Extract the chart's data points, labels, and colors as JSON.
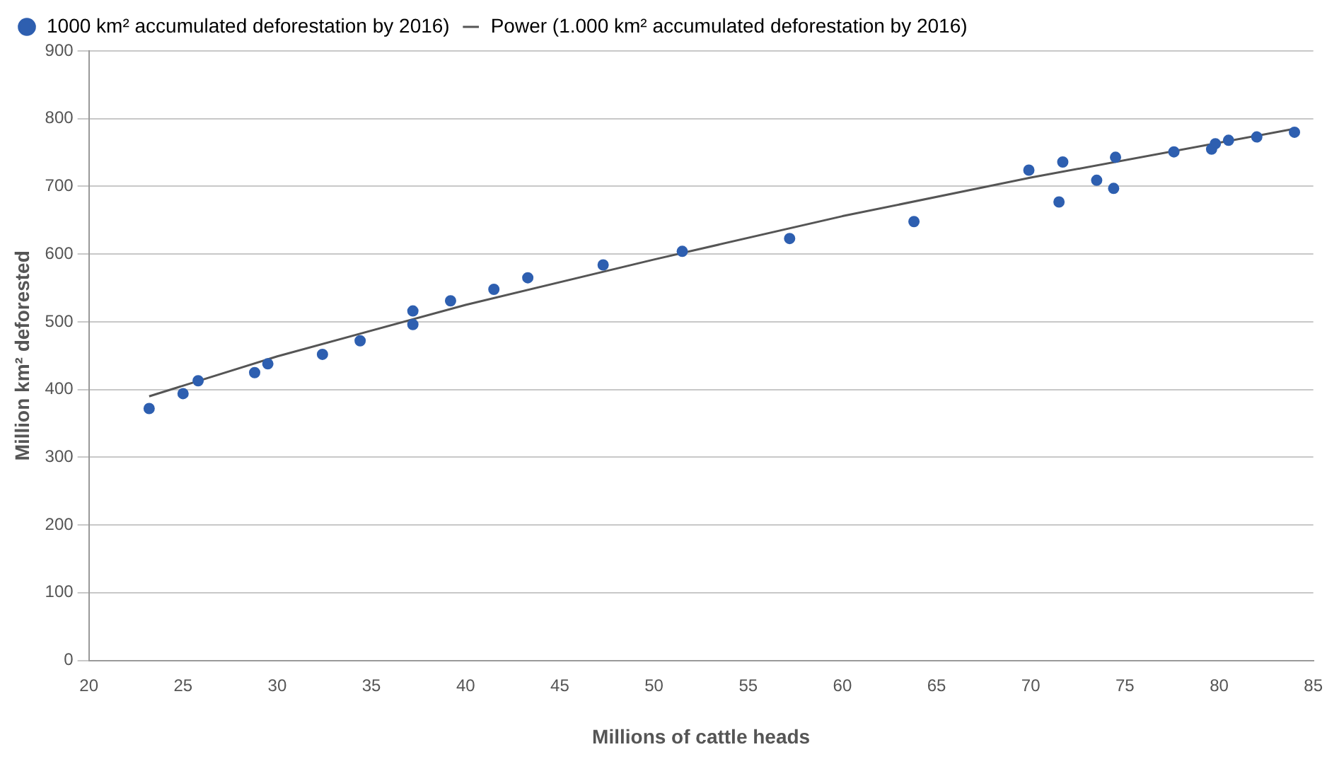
{
  "chart_data": {
    "type": "scatter",
    "xlabel": "Millions of cattle heads",
    "ylabel": "Million km² deforested",
    "xlim": [
      20,
      85
    ],
    "xticks": [
      20,
      25,
      30,
      35,
      40,
      45,
      50,
      55,
      60,
      65,
      70,
      75,
      80,
      85
    ],
    "ylim": [
      0,
      900
    ],
    "yticks": [
      0,
      100,
      200,
      300,
      400,
      500,
      600,
      700,
      800,
      900
    ],
    "grid": "y",
    "legend": "top left",
    "marker": "circle",
    "series": [
      {
        "name": "1000 km² accumulated deforestation by 2016)",
        "color": "#2e5fb0",
        "x": [
          23.2,
          25.0,
          25.8,
          28.8,
          29.5,
          32.4,
          34.4,
          37.2,
          37.2,
          39.2,
          41.5,
          43.3,
          47.3,
          51.5,
          57.2,
          63.8,
          69.9,
          71.5,
          71.7,
          73.5,
          74.4,
          74.5,
          77.6,
          79.6,
          79.8,
          80.5,
          82.0,
          84.0
        ],
        "values": [
          372,
          394,
          413,
          425,
          438,
          452,
          472,
          496,
          516,
          531,
          548,
          565,
          584,
          604,
          623,
          648,
          724,
          677,
          736,
          709,
          697,
          743,
          751,
          755,
          763,
          768,
          773,
          780
        ]
      },
      {
        "name": "Power (1.000 km² accumulated deforestation by 2016)",
        "color": "#555555",
        "type": "line",
        "marker": "none",
        "line_style": "solid",
        "x": [
          23.2,
          30,
          40,
          50,
          60,
          70,
          84
        ],
        "values": [
          390,
          449,
          525,
          592,
          656,
          713,
          785
        ]
      }
    ]
  }
}
